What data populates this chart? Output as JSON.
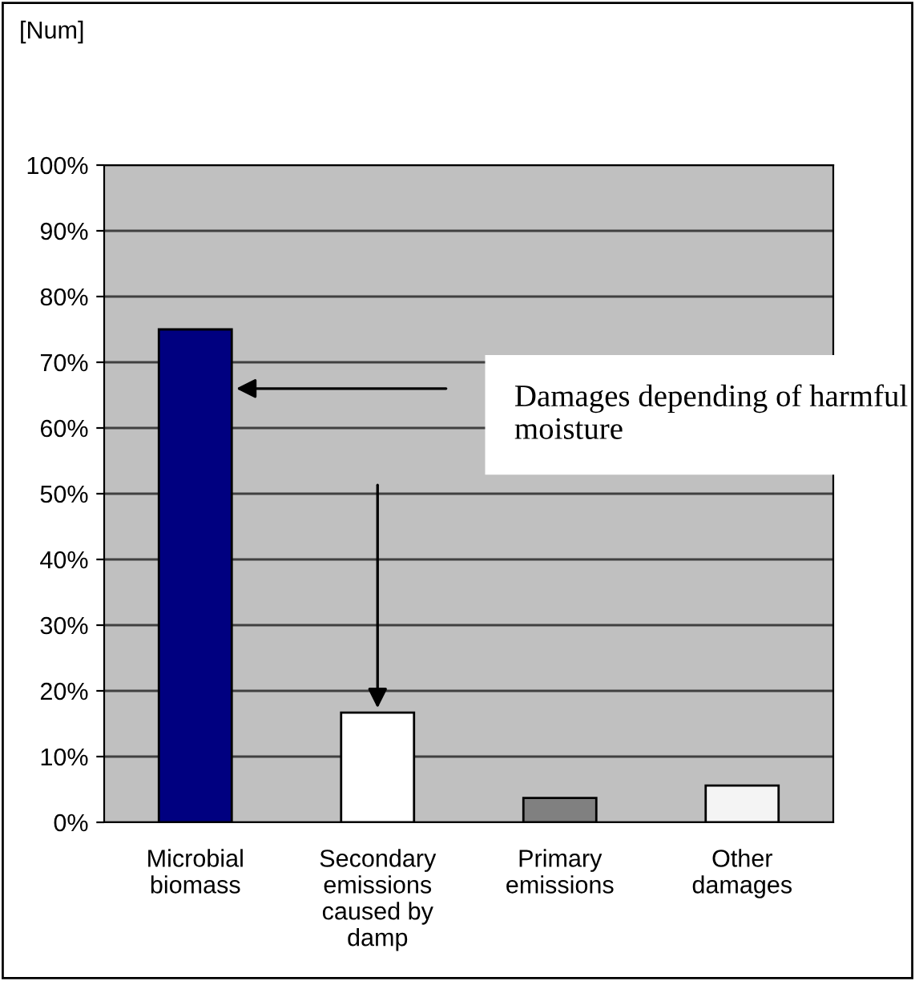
{
  "chart_data": {
    "type": "bar",
    "categories": [
      "Microbial\nbiomass",
      "Secondary\nemissions\ncaused by\ndamp",
      "Primary\nemissions",
      "Other\ndamages"
    ],
    "values": [
      75,
      16.7,
      3.7,
      5.6
    ],
    "colors": [
      "#000080",
      "#ffffff",
      "#808080",
      "#f4f4f4"
    ],
    "ylim": [
      0,
      100
    ],
    "yticks": [
      {
        "value": 0,
        "label": "0%"
      },
      {
        "value": 10,
        "label": "10%"
      },
      {
        "value": 20,
        "label": "20%"
      },
      {
        "value": 30,
        "label": "30%"
      },
      {
        "value": 40,
        "label": "40%"
      },
      {
        "value": 50,
        "label": "50%"
      },
      {
        "value": 60,
        "label": "60%"
      },
      {
        "value": 70,
        "label": "70%"
      },
      {
        "value": 80,
        "label": "80%"
      },
      {
        "value": 90,
        "label": "90%"
      },
      {
        "value": 100,
        "label": "100%"
      }
    ],
    "grid": "y",
    "legend": false,
    "annotations": [
      "[Num]",
      "Damages depending of harmful moisture"
    ]
  }
}
